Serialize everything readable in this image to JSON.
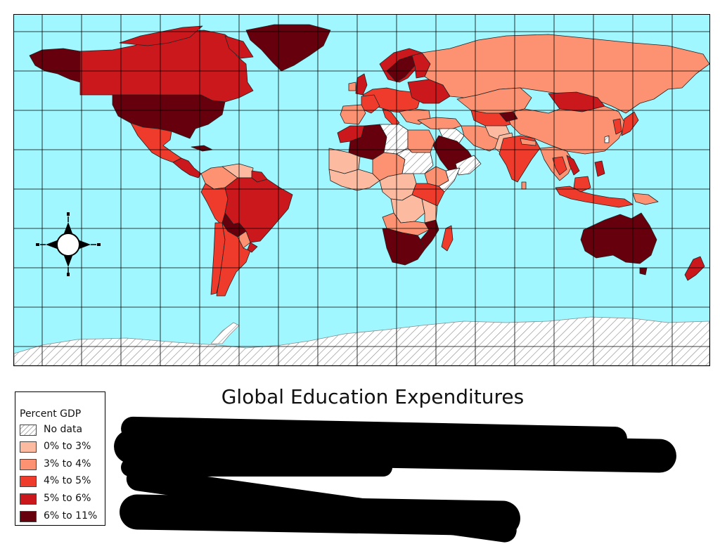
{
  "title": "Global Education Expenditures",
  "legend": {
    "title": "Percent GDP",
    "items": [
      {
        "label": "No data",
        "pattern": "hatch",
        "color": "#ffffff"
      },
      {
        "label": "0% to 3%",
        "color": "#fcbba1"
      },
      {
        "label": "3% to 4%",
        "color": "#fc9272"
      },
      {
        "label": "4% to 5%",
        "color": "#ef3b2c"
      },
      {
        "label": "5% to 6%",
        "color": "#cb181d"
      },
      {
        "label": "6% to 11%",
        "color": "#67000d"
      }
    ]
  },
  "colors": {
    "ocean": "#a1f7ff",
    "grid": "#000000",
    "nodata": "#ffffff"
  },
  "compass": "north-arrow-compass-icon"
}
